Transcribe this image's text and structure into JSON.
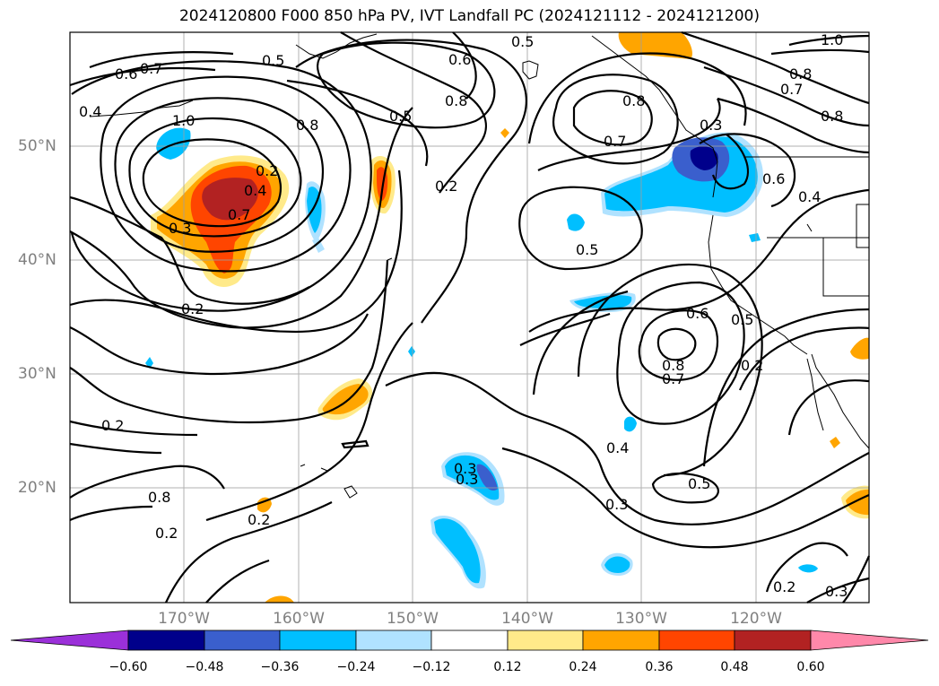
{
  "title": "2024120800 F000 850 hPa PV, IVT Landfall PC (2024121112 - 2024121200)",
  "lat_labels": [
    "50°N",
    "40°N",
    "30°N",
    "20°N"
  ],
  "lon_labels": [
    "170°W",
    "160°W",
    "150°W",
    "140°W",
    "130°W",
    "120°W"
  ],
  "colorbar": {
    "ticks": [
      "−0.60",
      "−0.48",
      "−0.36",
      "−0.24",
      "−0.12",
      "0.12",
      "0.24",
      "0.36",
      "0.48",
      "0.60"
    ],
    "colors": [
      "#9b30d9",
      "#00008b",
      "#3a5fcd",
      "#00bfff",
      "#b0e2ff",
      "#ffffff",
      "#ffea8a",
      "#ffa500",
      "#ff4500",
      "#b22222",
      "#ff88aa"
    ]
  },
  "contour_labels": [
    "0.6",
    "0.7",
    "0.5",
    "0.6",
    "0.8",
    "0.5",
    "0.5",
    "1.0",
    "0.8",
    "0.7",
    "0.8",
    "0.4",
    "1.0",
    "0.8",
    "0.8",
    "0.7",
    "0.2",
    "0.2",
    "0.4",
    "0.7",
    "0.3",
    "0.3",
    "0.6",
    "0.4",
    "0.5",
    "0.2",
    "0.6",
    "0.5",
    "0.8",
    "0.7",
    "0.2",
    "0.2",
    "0.4",
    "0.3",
    "0.8",
    "0.3",
    "0.2",
    "0.5",
    "0.3",
    "0.2",
    "0.2",
    "0.3"
  ]
}
